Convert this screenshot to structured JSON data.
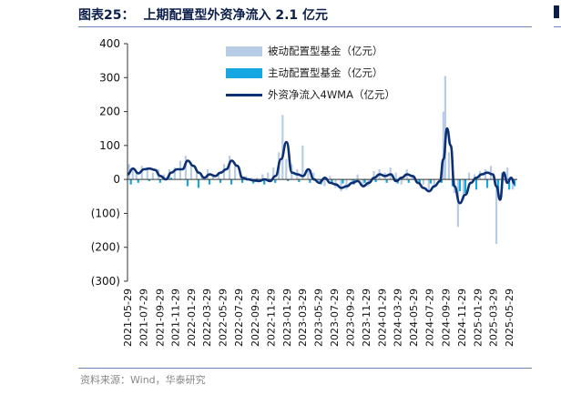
{
  "header": {
    "figure_no": "图表25：",
    "title": "上期配置型外资净流入 2.1 亿元"
  },
  "source": "资料来源：Wind，华泰研究",
  "colors": {
    "passive": "#b7cde6",
    "active": "#16a7e3",
    "line": "#0d2f74",
    "axis": "#333333",
    "rule": "#6b86b7"
  },
  "chart_data": {
    "type": "bar",
    "yticks": [
      "(300)",
      "(200)",
      "(100)",
      "0",
      "100",
      "200",
      "300",
      "400"
    ],
    "ylim": [
      -300,
      400
    ],
    "x_start": "2021-05-29",
    "x_end": "2025-06-30",
    "xticks": [
      "2021-05-29",
      "2021-07-29",
      "2021-09-29",
      "2021-11-29",
      "2022-01-29",
      "2022-03-29",
      "2022-05-29",
      "2022-07-29",
      "2022-09-29",
      "2022-11-29",
      "2023-01-29",
      "2023-03-29",
      "2023-05-29",
      "2023-07-29",
      "2023-09-29",
      "2023-11-29",
      "2024-01-29",
      "2024-03-29",
      "2024-05-29",
      "2024-07-29",
      "2024-09-29",
      "2024-11-29",
      "2025-01-29",
      "2025-03-29",
      "2025-05-29"
    ],
    "series": [
      {
        "name": "被动配置型基金（亿元）",
        "kind": "bar",
        "points": [
          [
            "2021-06-04",
            45
          ],
          [
            "2021-06-18",
            30
          ],
          [
            "2021-07-02",
            25
          ],
          [
            "2021-07-23",
            40
          ],
          [
            "2021-08-13",
            35
          ],
          [
            "2021-09-03",
            20
          ],
          [
            "2021-09-24",
            30
          ],
          [
            "2021-10-15",
            15
          ],
          [
            "2021-11-05",
            30
          ],
          [
            "2021-11-26",
            35
          ],
          [
            "2021-12-17",
            55
          ],
          [
            "2022-01-07",
            70
          ],
          [
            "2022-01-28",
            45
          ],
          [
            "2022-02-18",
            20
          ],
          [
            "2022-03-11",
            10
          ],
          [
            "2022-04-01",
            30
          ],
          [
            "2022-04-22",
            15
          ],
          [
            "2022-05-13",
            20
          ],
          [
            "2022-06-03",
            45
          ],
          [
            "2022-06-24",
            70
          ],
          [
            "2022-07-15",
            40
          ],
          [
            "2022-08-05",
            15
          ],
          [
            "2022-08-26",
            10
          ],
          [
            "2022-09-16",
            5
          ],
          [
            "2022-10-07",
            5
          ],
          [
            "2022-10-28",
            15
          ],
          [
            "2022-11-18",
            20
          ],
          [
            "2022-12-09",
            35
          ],
          [
            "2022-12-30",
            80
          ],
          [
            "2023-01-13",
            190
          ],
          [
            "2023-01-27",
            60
          ],
          [
            "2023-02-17",
            45
          ],
          [
            "2023-03-10",
            30
          ],
          [
            "2023-03-31",
            100
          ],
          [
            "2023-04-21",
            25
          ],
          [
            "2023-05-12",
            20
          ],
          [
            "2023-06-02",
            -10
          ],
          [
            "2023-06-23",
            -20
          ],
          [
            "2023-07-14",
            10
          ],
          [
            "2023-08-04",
            -25
          ],
          [
            "2023-08-25",
            -35
          ],
          [
            "2023-09-15",
            -30
          ],
          [
            "2023-10-06",
            -10
          ],
          [
            "2023-10-27",
            15
          ],
          [
            "2023-11-17",
            -15
          ],
          [
            "2023-12-08",
            -20
          ],
          [
            "2023-12-29",
            25
          ],
          [
            "2024-01-19",
            30
          ],
          [
            "2024-02-09",
            20
          ],
          [
            "2024-03-01",
            35
          ],
          [
            "2024-03-22",
            20
          ],
          [
            "2024-04-12",
            -15
          ],
          [
            "2024-05-03",
            30
          ],
          [
            "2024-05-24",
            10
          ],
          [
            "2024-06-14",
            -10
          ],
          [
            "2024-07-05",
            -15
          ],
          [
            "2024-07-26",
            -30
          ],
          [
            "2024-08-16",
            -25
          ],
          [
            "2024-09-06",
            -10
          ],
          [
            "2024-09-20",
            200
          ],
          [
            "2024-09-27",
            305
          ],
          [
            "2024-10-11",
            80
          ],
          [
            "2024-11-01",
            -40
          ],
          [
            "2024-11-15",
            -140
          ],
          [
            "2024-12-06",
            -60
          ],
          [
            "2024-12-27",
            20
          ],
          [
            "2025-01-17",
            15
          ],
          [
            "2025-02-07",
            25
          ],
          [
            "2025-02-28",
            30
          ],
          [
            "2025-03-21",
            40
          ],
          [
            "2025-04-11",
            -190
          ],
          [
            "2025-05-02",
            20
          ],
          [
            "2025-05-23",
            35
          ],
          [
            "2025-06-13",
            -30
          ]
        ]
      },
      {
        "name": "主动配置型基金（亿元）",
        "kind": "bar",
        "points": [
          [
            "2021-06-11",
            -15
          ],
          [
            "2021-07-09",
            -10
          ],
          [
            "2021-08-20",
            -5
          ],
          [
            "2021-10-01",
            -10
          ],
          [
            "2021-11-12",
            5
          ],
          [
            "2022-01-14",
            -20
          ],
          [
            "2022-02-25",
            -25
          ],
          [
            "2022-04-08",
            -15
          ],
          [
            "2022-05-20",
            -10
          ],
          [
            "2022-07-01",
            -15
          ],
          [
            "2022-08-12",
            -10
          ],
          [
            "2022-09-23",
            -12
          ],
          [
            "2022-11-04",
            -15
          ],
          [
            "2022-12-16",
            -10
          ],
          [
            "2023-02-03",
            -5
          ],
          [
            "2023-03-17",
            -8
          ],
          [
            "2023-04-28",
            -10
          ],
          [
            "2023-06-09",
            -15
          ],
          [
            "2023-07-21",
            -10
          ],
          [
            "2023-09-01",
            -12
          ],
          [
            "2023-10-13",
            -15
          ],
          [
            "2023-11-24",
            -10
          ],
          [
            "2024-01-05",
            -8
          ],
          [
            "2024-02-16",
            -10
          ],
          [
            "2024-03-29",
            -12
          ],
          [
            "2024-05-10",
            -10
          ],
          [
            "2024-06-21",
            -15
          ],
          [
            "2024-08-02",
            -12
          ],
          [
            "2024-09-13",
            -10
          ],
          [
            "2024-10-25",
            -20
          ],
          [
            "2024-11-22",
            -35
          ],
          [
            "2024-12-13",
            -40
          ],
          [
            "2025-01-24",
            -30
          ],
          [
            "2025-03-07",
            -25
          ],
          [
            "2025-04-18",
            -35
          ],
          [
            "2025-05-30",
            -30
          ],
          [
            "2025-06-20",
            -20
          ]
        ]
      },
      {
        "name": "外资净流入4WMA（亿元）",
        "kind": "line",
        "points": [
          [
            "2021-05-29",
            15
          ],
          [
            "2021-06-19",
            32
          ],
          [
            "2021-07-10",
            18
          ],
          [
            "2021-07-31",
            30
          ],
          [
            "2021-08-21",
            32
          ],
          [
            "2021-09-11",
            28
          ],
          [
            "2021-10-02",
            10
          ],
          [
            "2021-10-23",
            0
          ],
          [
            "2021-11-13",
            20
          ],
          [
            "2021-12-04",
            30
          ],
          [
            "2021-12-25",
            30
          ],
          [
            "2022-01-15",
            55
          ],
          [
            "2022-02-05",
            40
          ],
          [
            "2022-02-26",
            20
          ],
          [
            "2022-03-19",
            5
          ],
          [
            "2022-04-09",
            15
          ],
          [
            "2022-04-30",
            10
          ],
          [
            "2022-05-21",
            20
          ],
          [
            "2022-06-11",
            30
          ],
          [
            "2022-07-02",
            55
          ],
          [
            "2022-07-23",
            40
          ],
          [
            "2022-08-13",
            5
          ],
          [
            "2022-09-03",
            0
          ],
          [
            "2022-09-24",
            -3
          ],
          [
            "2022-10-15",
            -5
          ],
          [
            "2022-11-05",
            0
          ],
          [
            "2022-11-26",
            -5
          ],
          [
            "2022-12-17",
            10
          ],
          [
            "2023-01-07",
            60
          ],
          [
            "2023-01-28",
            110
          ],
          [
            "2023-02-18",
            20
          ],
          [
            "2023-03-11",
            15
          ],
          [
            "2023-04-01",
            10
          ],
          [
            "2023-04-22",
            30
          ],
          [
            "2023-05-13",
            0
          ],
          [
            "2023-06-03",
            -10
          ],
          [
            "2023-06-24",
            5
          ],
          [
            "2023-07-15",
            -10
          ],
          [
            "2023-08-05",
            -15
          ],
          [
            "2023-08-26",
            -25
          ],
          [
            "2023-09-16",
            -20
          ],
          [
            "2023-10-07",
            -10
          ],
          [
            "2023-10-28",
            -5
          ],
          [
            "2023-11-18",
            -20
          ],
          [
            "2023-12-09",
            -10
          ],
          [
            "2023-12-30",
            5
          ],
          [
            "2024-01-20",
            15
          ],
          [
            "2024-02-10",
            10
          ],
          [
            "2024-03-02",
            15
          ],
          [
            "2024-03-23",
            -5
          ],
          [
            "2024-04-13",
            5
          ],
          [
            "2024-05-04",
            15
          ],
          [
            "2024-05-25",
            10
          ],
          [
            "2024-06-15",
            -10
          ],
          [
            "2024-07-06",
            -25
          ],
          [
            "2024-07-27",
            -35
          ],
          [
            "2024-08-17",
            -20
          ],
          [
            "2024-09-07",
            -5
          ],
          [
            "2024-09-20",
            60
          ],
          [
            "2024-10-04",
            150
          ],
          [
            "2024-10-18",
            100
          ],
          [
            "2024-11-01",
            -20
          ],
          [
            "2024-11-22",
            -70
          ],
          [
            "2024-12-13",
            -45
          ],
          [
            "2025-01-03",
            -10
          ],
          [
            "2025-01-24",
            5
          ],
          [
            "2025-02-14",
            15
          ],
          [
            "2025-03-07",
            20
          ],
          [
            "2025-03-28",
            15
          ],
          [
            "2025-04-11",
            -20
          ],
          [
            "2025-04-25",
            -60
          ],
          [
            "2025-05-09",
            20
          ],
          [
            "2025-05-23",
            -10
          ],
          [
            "2025-06-06",
            5
          ],
          [
            "2025-06-20",
            -12
          ]
        ]
      }
    ]
  }
}
